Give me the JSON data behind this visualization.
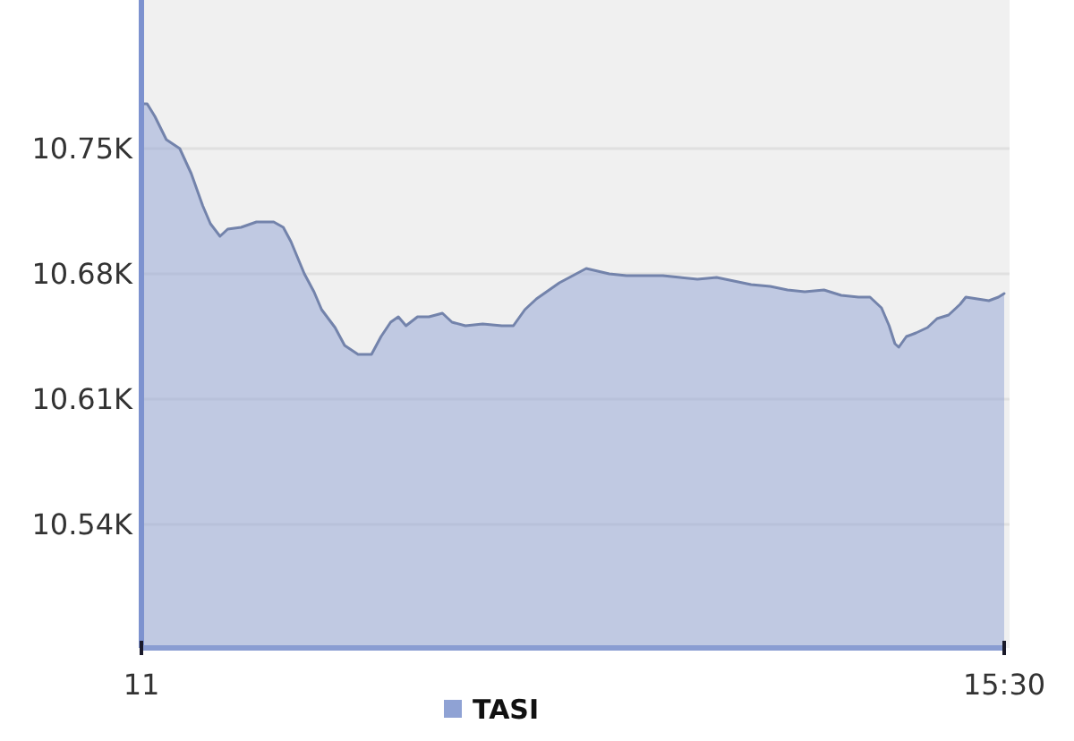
{
  "chart_data": {
    "type": "area",
    "x": [
      11.0,
      11.03,
      11.07,
      11.13,
      11.2,
      11.26,
      11.32,
      11.36,
      11.41,
      11.45,
      11.52,
      11.6,
      11.69,
      11.74,
      11.78,
      11.85,
      11.9,
      11.94,
      12.01,
      12.06,
      12.13,
      12.2,
      12.25,
      12.3,
      12.34,
      12.38,
      12.44,
      12.5,
      12.57,
      12.62,
      12.69,
      12.78,
      12.88,
      12.94,
      13.0,
      13.06,
      13.18,
      13.25,
      13.32,
      13.44,
      13.53,
      13.62,
      13.72,
      13.81,
      13.9,
      14.0,
      14.09,
      14.18,
      14.28,
      14.37,
      14.46,
      14.56,
      14.65,
      14.74,
      14.8,
      14.86,
      14.9,
      14.93,
      14.95,
      14.99,
      15.04,
      15.1,
      15.15,
      15.21,
      15.27,
      15.3,
      15.36,
      15.42,
      15.47,
      15.5
    ],
    "series": [
      {
        "name": "TASI",
        "color": "#8fa2d4",
        "values": [
          10775,
          10775,
          10768,
          10755,
          10750,
          10736,
          10718,
          10708,
          10701,
          10705,
          10706,
          10709,
          10709,
          10706,
          10698,
          10680,
          10670,
          10660,
          10650,
          10640,
          10635,
          10635,
          10645,
          10653,
          10656,
          10651,
          10656,
          10656,
          10658,
          10653,
          10651,
          10652,
          10651,
          10651,
          10660,
          10666,
          10675,
          10679,
          10683,
          10680,
          10679,
          10679,
          10679,
          10678,
          10677,
          10678,
          10676,
          10674,
          10673,
          10671,
          10670,
          10671,
          10668,
          10667,
          10667,
          10661,
          10651,
          10641,
          10639,
          10645,
          10647,
          10650,
          10655,
          10657,
          10663,
          10667,
          10666,
          10665,
          10667,
          10669
        ]
      }
    ],
    "xlim": [
      11,
      15.5
    ],
    "xticks": [
      11,
      {
        "value": 15.5,
        "label": "15:30"
      }
    ],
    "ylim": [
      10471,
      10833
    ],
    "yticks": [
      {
        "value": 10540,
        "label": "10.54K"
      },
      {
        "value": 10610,
        "label": "10.61K"
      },
      {
        "value": 10680,
        "label": "10.68K"
      },
      {
        "value": 10750,
        "label": "10.75K"
      }
    ],
    "grid": "y",
    "legend": "bottom"
  }
}
